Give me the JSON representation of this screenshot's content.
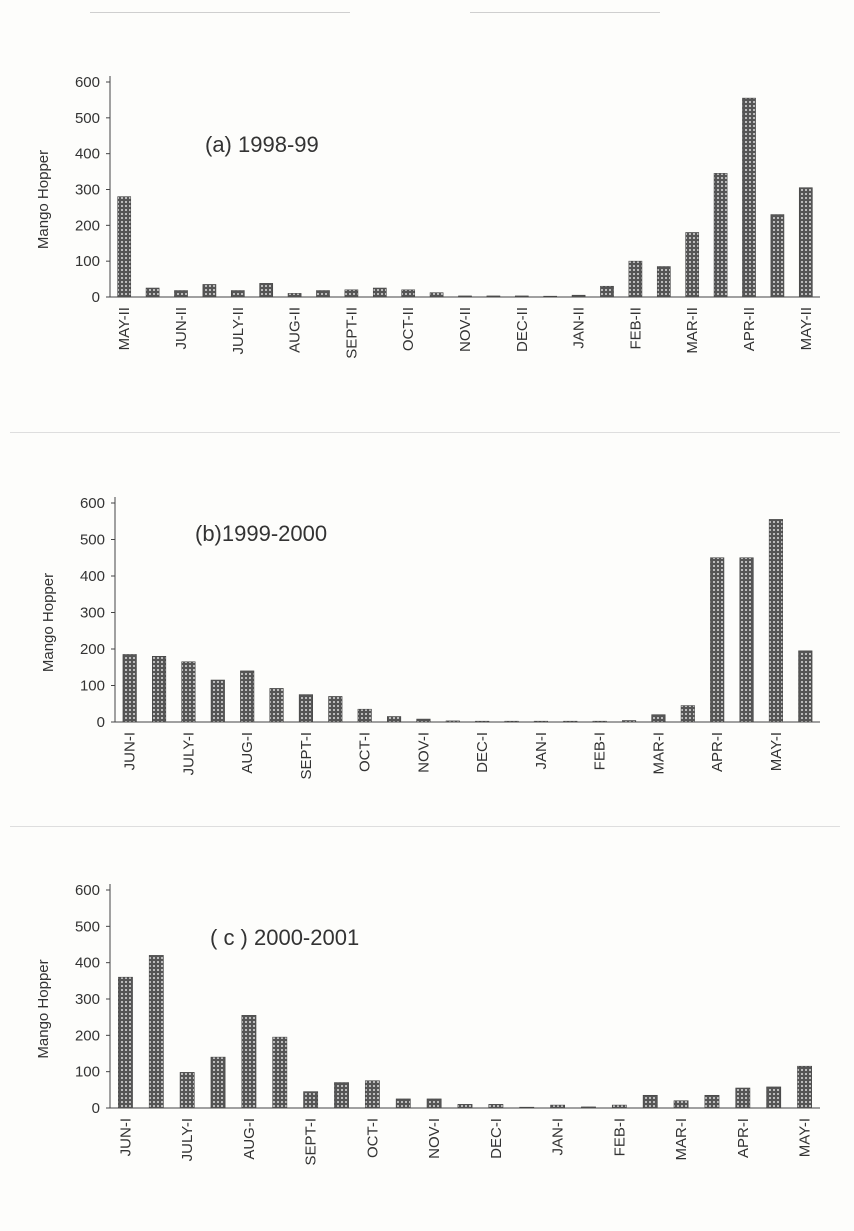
{
  "bar_pattern_colors": {
    "fill": "#555555",
    "dot": "#dcdcdc"
  },
  "chart_data": [
    {
      "type": "bar",
      "title": "(a) 1998-99",
      "ylabel": "Mango Hopper",
      "ylim": [
        0,
        600
      ],
      "yticks": [
        "0",
        "100",
        "200",
        "300",
        "400",
        "500",
        "600"
      ],
      "category_labels": [
        "MAY-II",
        "JUN-II",
        "JULY-II",
        "AUG-II",
        "SEPT-II",
        "OCT-II",
        "NOV-II",
        "DEC-II",
        "JAN-II",
        "FEB-II",
        "MAR-II",
        "APR-II",
        "MAY-II"
      ],
      "values": [
        280,
        25,
        18,
        35,
        18,
        38,
        10,
        18,
        20,
        25,
        20,
        12,
        3,
        3,
        3,
        1,
        5,
        30,
        100,
        85,
        180,
        345,
        555,
        230,
        305
      ]
    },
    {
      "type": "bar",
      "title": "(b)1999-2000",
      "ylabel": "Mango Hopper",
      "ylim": [
        0,
        600
      ],
      "yticks": [
        "0",
        "100",
        "200",
        "300",
        "400",
        "500",
        "600"
      ],
      "category_labels": [
        "JUN-I",
        "JULY-I",
        "AUG-I",
        "SEPT-I",
        "OCT-I",
        "NOV-I",
        "DEC-I",
        "JAN-I",
        "FEB-I",
        "MAR-I",
        "APR-I",
        "MAY-I"
      ],
      "values": [
        185,
        180,
        165,
        115,
        140,
        92,
        75,
        70,
        35,
        15,
        8,
        3,
        2,
        2,
        2,
        2,
        2,
        4,
        20,
        45,
        450,
        450,
        555,
        195
      ]
    },
    {
      "type": "bar",
      "title": "( c ) 2000-2001",
      "ylabel": "Mango Hopper",
      "ylim": [
        0,
        600
      ],
      "yticks": [
        "0",
        "100",
        "200",
        "300",
        "400",
        "500",
        "600"
      ],
      "category_labels": [
        "JUN-I",
        "JULY-I",
        "AUG-I",
        "SEPT-I",
        "OCT-I",
        "NOV-I",
        "DEC-I",
        "JAN-I",
        "FEB-I",
        "MAR-I",
        "APR-I",
        "MAY-I"
      ],
      "values": [
        360,
        420,
        98,
        140,
        255,
        195,
        45,
        70,
        75,
        25,
        25,
        10,
        10,
        0,
        8,
        3,
        8,
        35,
        20,
        35,
        55,
        58,
        115
      ]
    }
  ]
}
